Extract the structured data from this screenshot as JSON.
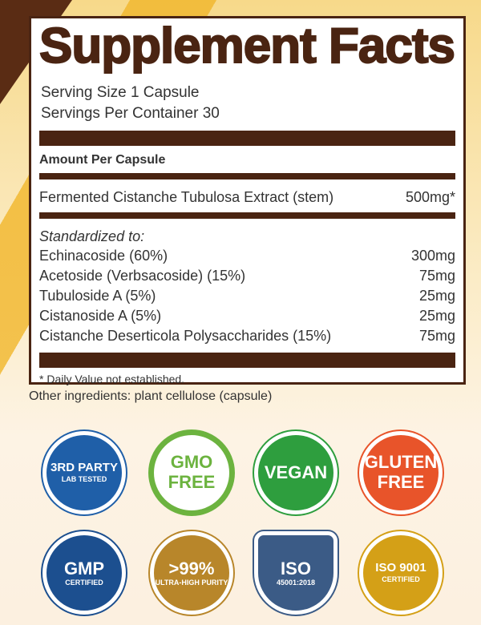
{
  "title": "Supplement Facts",
  "serving_size": "Serving Size 1 Capsule",
  "servings_per_container": "Servings Per Container 30",
  "amount_header": "Amount Per Capsule",
  "main_ingredient": {
    "name": "Fermented Cistanche Tubulosa Extract (stem)",
    "amount": "500mg*"
  },
  "standardized_label": "Standardized to:",
  "standardized": [
    {
      "name": "Echinacoside (60%)",
      "amount": "300mg"
    },
    {
      "name": "Acetoside (Verbsacoside) (15%)",
      "amount": "75mg"
    },
    {
      "name": "Tubuloside A (5%)",
      "amount": "25mg"
    },
    {
      "name": "Cistanoside A (5%)",
      "amount": "25mg"
    },
    {
      "name": "Cistanche Deserticola Polysaccharides (15%)",
      "amount": "75mg"
    }
  ],
  "footnote": "* Daily Value not established.",
  "other_ingredients": "Other ingredients: plant cellulose (capsule)",
  "badges": [
    {
      "line1": "3RD PARTY",
      "line2": "LAB TESTED",
      "color": "#1f5fa8"
    },
    {
      "line1": "GMO",
      "line2": "FREE",
      "color": "#6cb33f"
    },
    {
      "line1": "VEGAN",
      "line2": "",
      "color": "#2e9e3e"
    },
    {
      "line1": "GLUTEN",
      "line2": "FREE",
      "color": "#e8542a"
    },
    {
      "line1": "GMP",
      "line2": "CERTIFIED",
      "color": "#1c4f8f"
    },
    {
      "line1": ">99%",
      "line2": "ULTRA-HIGH PURITY",
      "color": "#b8862a"
    },
    {
      "line1": "ISO",
      "line2": "45001:2018",
      "color": "#3b5b86"
    },
    {
      "line1": "ISO 9001",
      "line2": "CERTIFIED",
      "color": "#d4a017"
    }
  ],
  "colors": {
    "brown": "#4a2412",
    "accent": "#f1b62a"
  }
}
